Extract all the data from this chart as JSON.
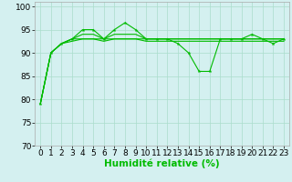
{
  "x": [
    0,
    1,
    2,
    3,
    4,
    5,
    6,
    7,
    8,
    9,
    10,
    11,
    12,
    13,
    14,
    15,
    16,
    17,
    18,
    19,
    20,
    21,
    22,
    23
  ],
  "line1": [
    79,
    90,
    92,
    93,
    95,
    95,
    93,
    95,
    96.5,
    95,
    93,
    93,
    93,
    92,
    90,
    86,
    86,
    93,
    93,
    93,
    94,
    93,
    92,
    93
  ],
  "line2": [
    79,
    90,
    92,
    92.5,
    93,
    93,
    92.5,
    93,
    93,
    93,
    92.5,
    92.5,
    92.5,
    92.5,
    92.5,
    92.5,
    92.5,
    92.5,
    92.5,
    92.5,
    92.5,
    92.5,
    92.5,
    92.5
  ],
  "line3": [
    79,
    90,
    92,
    93,
    94,
    94,
    93,
    94,
    94,
    94,
    93,
    93,
    93,
    93,
    93,
    93,
    93,
    93,
    93,
    93,
    93,
    93,
    93,
    93
  ],
  "line4": [
    79,
    90,
    92,
    93,
    93,
    93,
    93,
    93,
    93,
    93,
    93,
    93,
    93,
    93,
    93,
    93,
    93,
    93,
    93,
    93,
    93,
    93,
    93,
    93
  ],
  "line_color": "#00bb00",
  "background_color": "#d4f0f0",
  "grid_color": "#aaddcc",
  "xlabel": "Humidité relative (%)",
  "ylim": [
    70,
    101
  ],
  "yticks": [
    70,
    75,
    80,
    85,
    90,
    95,
    100
  ],
  "tick_fontsize": 6.5,
  "xlabel_fontsize": 7.5
}
